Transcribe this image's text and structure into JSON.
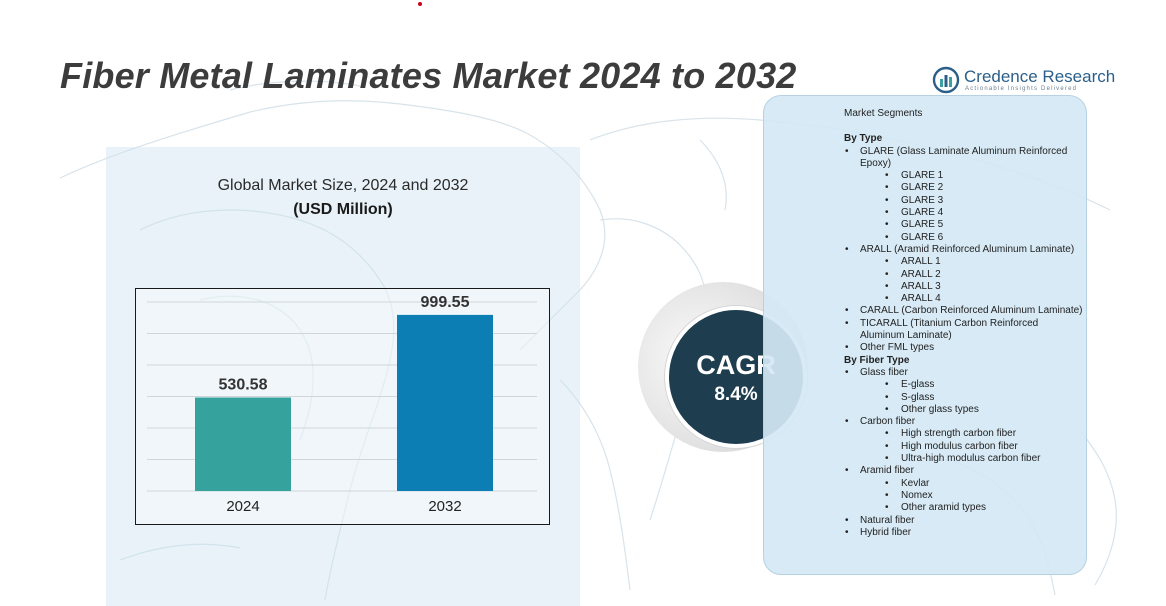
{
  "title": "Fiber Metal Laminates Market 2024 to 2032",
  "logo": {
    "name": "Credence Research",
    "tagline": "Actionable Insights Delivered"
  },
  "chart_data": {
    "type": "bar",
    "title": "Global Market Size, 2024 and 2032",
    "subtitle": "(USD Million)",
    "categories": [
      "2024",
      "2032"
    ],
    "values": [
      530.58,
      999.55
    ],
    "value_labels": [
      "530.58",
      "999.55"
    ],
    "colors": [
      "#35a29e",
      "#0d7eb3"
    ],
    "grid": true,
    "ylim": [
      0,
      1050
    ]
  },
  "cagr": {
    "label": "CAGR",
    "value": "8.4%"
  },
  "segments": {
    "heading": "Market Segments",
    "groups": [
      {
        "title": "By Type",
        "items": [
          {
            "label": "GLARE (Glass Laminate Aluminum Reinforced Epoxy)",
            "subs": [
              "GLARE 1",
              "GLARE 2",
              "GLARE 3",
              "GLARE 4",
              "GLARE 5",
              "GLARE 6"
            ]
          },
          {
            "label": "ARALL (Aramid Reinforced Aluminum Laminate)",
            "subs": [
              "ARALL 1",
              "ARALL 2",
              "ARALL 3",
              "ARALL 4"
            ]
          },
          {
            "label": "CARALL (Carbon Reinforced Aluminum Laminate)",
            "subs": []
          },
          {
            "label": "TICARALL (Titanium Carbon Reinforced Aluminum Laminate)",
            "subs": []
          },
          {
            "label": "Other FML types",
            "subs": []
          }
        ]
      },
      {
        "title": "By Fiber Type",
        "items": [
          {
            "label": "Glass fiber",
            "subs": [
              "E-glass",
              "S-glass",
              "Other glass types"
            ]
          },
          {
            "label": "Carbon fiber",
            "subs": [
              "High strength carbon fiber",
              "High modulus carbon fiber",
              "Ultra-high modulus carbon fiber"
            ]
          },
          {
            "label": "Aramid fiber",
            "subs": [
              "Kevlar",
              "Nomex",
              "Other aramid types"
            ]
          },
          {
            "label": "Natural fiber",
            "subs": []
          },
          {
            "label": "Hybrid fiber",
            "subs": []
          }
        ]
      }
    ]
  }
}
